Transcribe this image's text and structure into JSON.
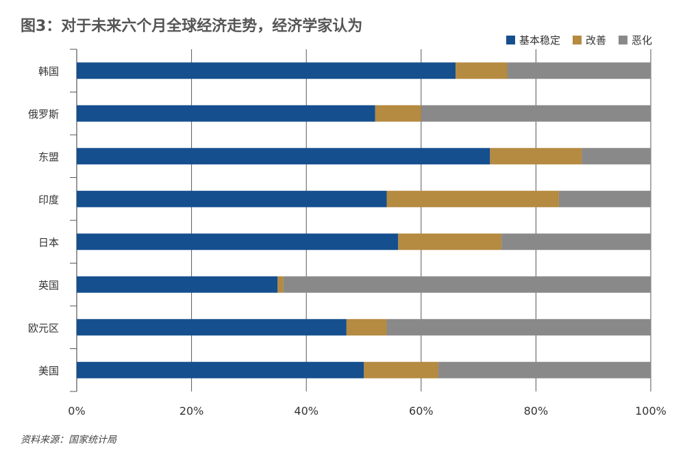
{
  "header": {
    "title": "图3：对于未来六个月全球经济走势，经济学家认为"
  },
  "legend": [
    {
      "label": "基本稳定",
      "color": "#154f8e"
    },
    {
      "label": "改善",
      "color": "#b58a41"
    },
    {
      "label": "恶化",
      "color": "#898989"
    }
  ],
  "footer": {
    "source": "资料来源：国家统计局"
  },
  "chart_data": {
    "type": "bar",
    "orientation": "horizontal",
    "stacked": true,
    "categories": [
      "韩国",
      "俄罗斯",
      "东盟",
      "印度",
      "日本",
      "英国",
      "欧元区",
      "美国"
    ],
    "series": [
      {
        "name": "基本稳定",
        "color": "#154f8e",
        "values": [
          66,
          52,
          72,
          54,
          56,
          35,
          47,
          50
        ]
      },
      {
        "name": "改善",
        "color": "#b58a41",
        "values": [
          9,
          8,
          16,
          30,
          18,
          1,
          7,
          13
        ]
      },
      {
        "name": "恶化",
        "color": "#898989",
        "values": [
          25,
          40,
          12,
          16,
          26,
          64,
          46,
          37
        ]
      }
    ],
    "xlim": [
      0,
      100
    ],
    "xticks": [
      "0%",
      "20%",
      "40%",
      "60%",
      "80%",
      "100%"
    ],
    "xlabel": "",
    "ylabel": "",
    "grid": "vertical",
    "legend_position": "top-right"
  }
}
